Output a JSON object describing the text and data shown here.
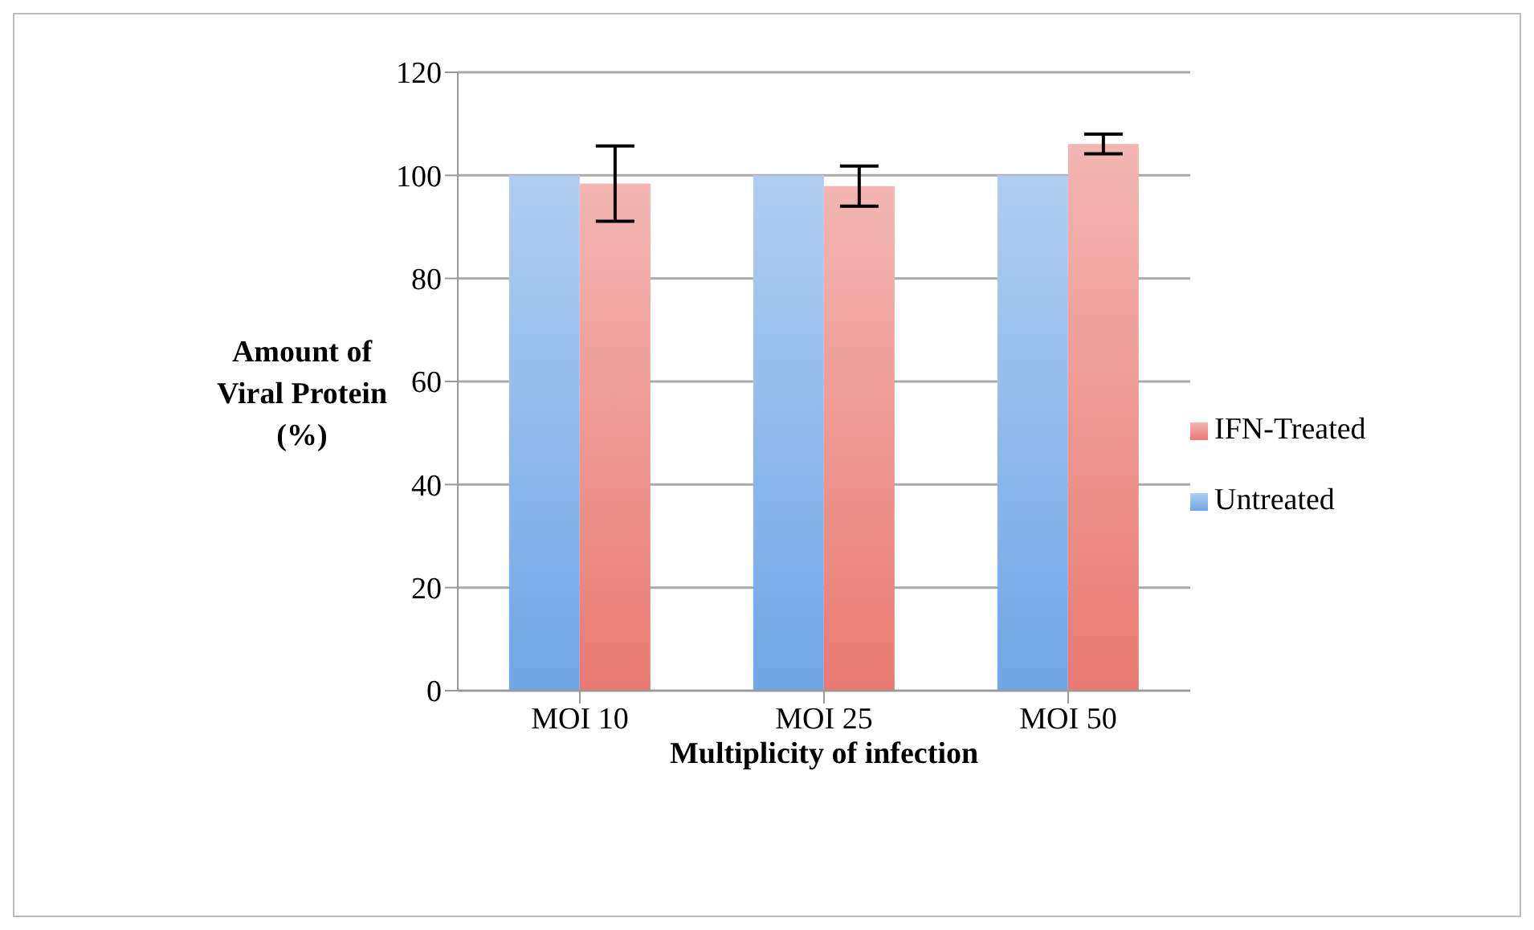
{
  "chart_data": {
    "type": "bar",
    "xlabel": "Multiplicity of infection",
    "ylabel": "Amount of Viral Protein (%)",
    "categories": [
      "MOI 10",
      "MOI 25",
      "MOI 50"
    ],
    "series": [
      {
        "name": "Untreated",
        "color": "#6fa6e6",
        "values": [
          100,
          100,
          100
        ],
        "errors": [
          0,
          0,
          0
        ]
      },
      {
        "name": "IFN-Treated",
        "color": "#e97a73",
        "values": [
          98.4,
          97.9,
          106.1
        ],
        "errors": [
          7.3,
          3.9,
          1.9
        ]
      }
    ],
    "ylim": [
      0,
      120
    ],
    "yticks": [
      0,
      20,
      40,
      60,
      80,
      100,
      120
    ],
    "grid": "y",
    "legend": "right"
  }
}
